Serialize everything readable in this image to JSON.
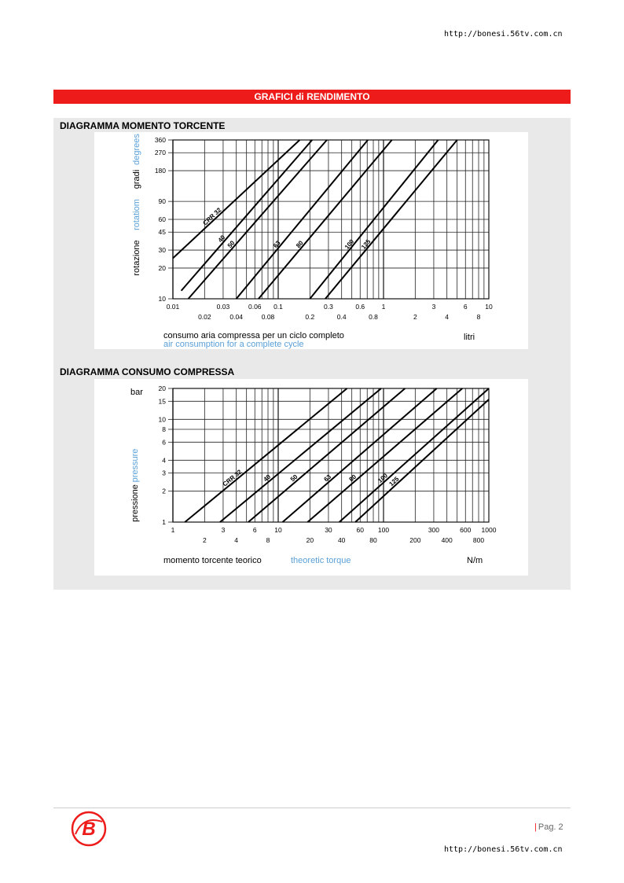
{
  "header": {
    "url": "http://bonesi.56tv.com.cn"
  },
  "banner": {
    "title": "GRAFICI di RENDIMENTO"
  },
  "footer": {
    "page": "Pag. 2",
    "url": "http://bonesi.56tv.com.cn"
  },
  "colors": {
    "accent": "#ee1b1b",
    "english_label": "#5aa0d8",
    "panel": "#e9e9e9"
  },
  "chart_data": [
    {
      "type": "line",
      "section_title": "DIAGRAMMA MOMENTO TORCENTE",
      "x_scale": "log",
      "y_scale": "log",
      "xlim": [
        0.01,
        10
      ],
      "ylim": [
        10,
        360
      ],
      "y_ticks": [
        "360",
        "270",
        "180",
        "90",
        "60",
        "45",
        "30",
        "20",
        "10"
      ],
      "y_tick_values": [
        360,
        270,
        180,
        90,
        60,
        45,
        30,
        20,
        10
      ],
      "x_ticks_top": [
        "0.01",
        "0.03",
        "0.06",
        "0.1",
        "0.3",
        "0.6",
        "1",
        "3",
        "6",
        "10"
      ],
      "x_ticks_top_values": [
        0.01,
        0.03,
        0.06,
        0.1,
        0.3,
        0.6,
        1,
        3,
        6,
        10
      ],
      "x_ticks_bottom": [
        "0.02",
        "0.04",
        "0.08",
        "0.2",
        "0.4",
        "0.8",
        "2",
        "4",
        "8"
      ],
      "x_ticks_bottom_values": [
        0.02,
        0.04,
        0.08,
        0.2,
        0.4,
        0.8,
        2,
        4,
        8
      ],
      "ylabel_it": "rotazione",
      "ylabel_en": "rotatiom",
      "ylabel2_it": "gradi",
      "ylabel2_en": "degrees",
      "xlabel_it": "consumo aria compressa per un ciclo completo",
      "xlabel_en": "air consumption for a complete cycle",
      "xunit": "litri",
      "series": [
        {
          "name": "CRR 32",
          "x": [
            0.01,
            0.16
          ],
          "y": [
            25,
            360
          ]
        },
        {
          "name": "40",
          "x": [
            0.012,
            0.21
          ],
          "y": [
            12,
            360
          ]
        },
        {
          "name": "50",
          "x": [
            0.014,
            0.29
          ],
          "y": [
            10,
            360
          ]
        },
        {
          "name": "63",
          "x": [
            0.04,
            0.71
          ],
          "y": [
            10,
            360
          ]
        },
        {
          "name": "80",
          "x": [
            0.065,
            1.2
          ],
          "y": [
            10,
            360
          ]
        },
        {
          "name": "100",
          "x": [
            0.2,
            3.3
          ],
          "y": [
            10,
            360
          ]
        },
        {
          "name": "125",
          "x": [
            0.28,
            5.0
          ],
          "y": [
            10,
            360
          ]
        }
      ]
    },
    {
      "type": "line",
      "section_title": "DIAGRAMMA CONSUMO COMPRESSA",
      "x_scale": "log",
      "y_scale": "log",
      "xlim": [
        1,
        1000
      ],
      "ylim": [
        1,
        20
      ],
      "y_ticks": [
        "20",
        "15",
        "10",
        "8",
        "6",
        "4",
        "3",
        "2",
        "1"
      ],
      "y_tick_values": [
        20,
        15,
        10,
        8,
        6,
        4,
        3,
        2,
        1
      ],
      "x_ticks_top": [
        "1",
        "3",
        "6",
        "10",
        "30",
        "60",
        "100",
        "300",
        "600",
        "1000"
      ],
      "x_ticks_top_values": [
        1,
        3,
        6,
        10,
        30,
        60,
        100,
        300,
        600,
        1000
      ],
      "x_ticks_bottom": [
        "2",
        "4",
        "8",
        "20",
        "40",
        "80",
        "200",
        "400",
        "800"
      ],
      "x_ticks_bottom_values": [
        2,
        4,
        8,
        20,
        40,
        80,
        200,
        400,
        800
      ],
      "yunit": "bar",
      "ylabel_it": "pressione",
      "ylabel_en": "pressure",
      "xlabel_it": "momento torcente teorico",
      "xlabel_en": "theoretic torque",
      "xunit": "N/m",
      "series": [
        {
          "name": "CRR 32",
          "x": [
            1.3,
            45
          ],
          "y": [
            1,
            20
          ]
        },
        {
          "name": "40",
          "x": [
            2.8,
            95
          ],
          "y": [
            1,
            20
          ]
        },
        {
          "name": "50",
          "x": [
            5.2,
            160
          ],
          "y": [
            1,
            20
          ]
        },
        {
          "name": "63",
          "x": [
            11,
            320
          ],
          "y": [
            1,
            20
          ]
        },
        {
          "name": "80",
          "x": [
            19,
            560
          ],
          "y": [
            1,
            20
          ]
        },
        {
          "name": "100",
          "x": [
            38,
            1000
          ],
          "y": [
            1,
            20
          ]
        },
        {
          "name": "125",
          "x": [
            54,
            1300
          ],
          "y": [
            1,
            20
          ]
        }
      ]
    }
  ]
}
